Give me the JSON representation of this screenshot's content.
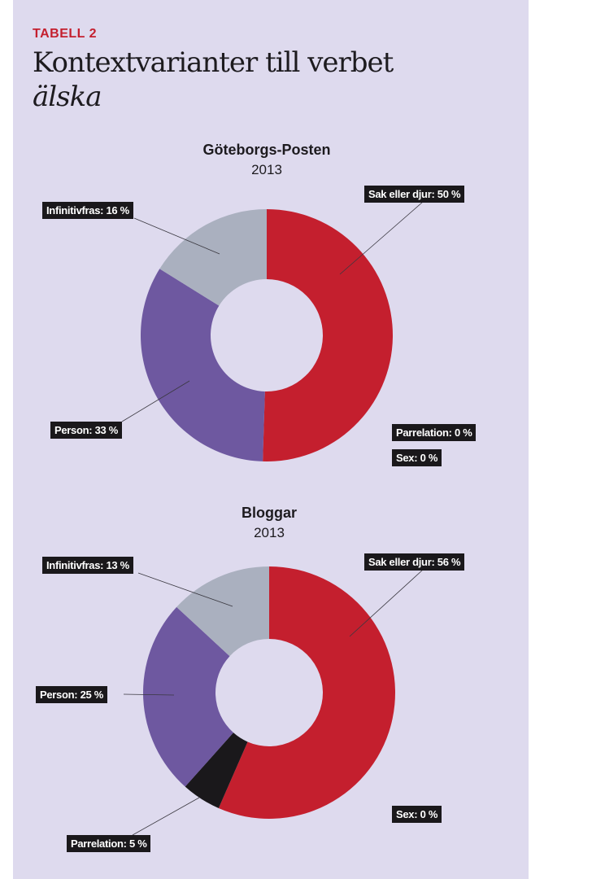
{
  "header": {
    "kicker": "TABELL 2",
    "title_line1": "Kontextvarianter till verbet",
    "title_line2": "älska"
  },
  "chart_data": [
    {
      "type": "pie",
      "title": "Göteborgs-Posten",
      "subtitle": "2013",
      "slices": [
        {
          "label": "Sak eller djur",
          "value": 50,
          "text": "Sak eller djur: 50 %",
          "color": "#c41f2e"
        },
        {
          "label": "Parrelation",
          "value": 0,
          "text": "Parrelation: 0 %",
          "color": "#1a181b"
        },
        {
          "label": "Sex",
          "value": 0,
          "text": "Sex: 0 %",
          "color": "#1a181b"
        },
        {
          "label": "Person",
          "value": 33,
          "text": "Person: 33 %",
          "color": "#6e58a0"
        },
        {
          "label": "Infinitivfras",
          "value": 16,
          "text": "Infinitivfras: 16 %",
          "color": "#aab0bf"
        }
      ]
    },
    {
      "type": "pie",
      "title": "Bloggar",
      "subtitle": "2013",
      "slices": [
        {
          "label": "Sak eller djur",
          "value": 56,
          "text": "Sak eller djur: 56 %",
          "color": "#c41f2e"
        },
        {
          "label": "Sex",
          "value": 0,
          "text": "Sex: 0 %",
          "color": "#1a181b"
        },
        {
          "label": "Parrelation",
          "value": 5,
          "text": "Parrelation: 5 %",
          "color": "#1a181b"
        },
        {
          "label": "Person",
          "value": 25,
          "text": "Person: 25 %",
          "color": "#6e58a0"
        },
        {
          "label": "Infinitivfras",
          "value": 13,
          "text": "Infinitivfras: 13 %",
          "color": "#aab0bf"
        }
      ]
    }
  ]
}
